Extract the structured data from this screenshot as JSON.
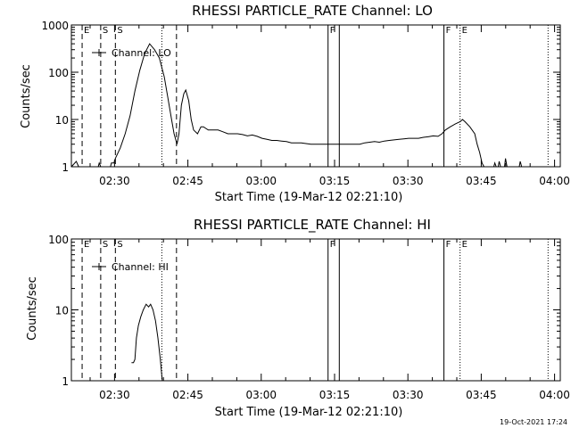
{
  "footer": {
    "timestamp": "19-Oct-2021 17:24"
  },
  "chart_data": [
    {
      "type": "line",
      "title": "RHESSI PARTICLE_RATE Channel: LO",
      "xlabel": "Start Time (19-Mar-12 02:21:10)",
      "ylabel": "Counts/sec",
      "x_unit": "minutes after 02:21:10",
      "xlim": [
        0,
        100
      ],
      "ylim": [
        1,
        1000
      ],
      "yscale": "log",
      "xticks": [
        {
          "x": 8.83,
          "label": "02:30"
        },
        {
          "x": 23.83,
          "label": "02:45"
        },
        {
          "x": 38.83,
          "label": "03:00"
        },
        {
          "x": 53.83,
          "label": "03:15"
        },
        {
          "x": 68.83,
          "label": "03:30"
        },
        {
          "x": 83.83,
          "label": "03:45"
        },
        {
          "x": 98.83,
          "label": "04:00"
        }
      ],
      "yticks": [
        {
          "y": 1,
          "label": "1"
        },
        {
          "y": 10,
          "label": "10"
        },
        {
          "y": 100,
          "label": "100"
        },
        {
          "y": 1000,
          "label": "1000"
        }
      ],
      "legend": {
        "position": "top-left",
        "entries": [
          "Channel: LO"
        ]
      },
      "vertical_markers": [
        {
          "x": 2.2,
          "style": "dashed",
          "label": "E"
        },
        {
          "x": 6.0,
          "style": "dashed",
          "label": "S"
        },
        {
          "x": 9.0,
          "style": "dashed",
          "label": "S"
        },
        {
          "x": 18.5,
          "style": "dotted",
          "label": ""
        },
        {
          "x": 21.5,
          "style": "dashed",
          "label": ""
        },
        {
          "x": 52.5,
          "style": "solid",
          "label": "F"
        },
        {
          "x": 54.8,
          "style": "solid",
          "label": ""
        },
        {
          "x": 76.2,
          "style": "solid",
          "label": "F"
        },
        {
          "x": 79.5,
          "style": "dotted",
          "label": "E"
        },
        {
          "x": 97.5,
          "style": "dotted",
          "label": ""
        }
      ],
      "series": [
        {
          "name": "Channel: LO",
          "segments": [
            [
              [
                0,
                1
              ],
              [
                1,
                1.3
              ],
              [
                1.5,
                1
              ]
            ],
            [
              [
                5.5,
                1
              ],
              [
                5.7,
                1.2
              ],
              [
                6,
                1
              ]
            ],
            [
              [
                7.3,
                1
              ],
              [
                8,
                1
              ],
              [
                8.2,
                1.2
              ],
              [
                8.7,
                1.2
              ],
              [
                9,
                1.5
              ],
              [
                10,
                2.5
              ],
              [
                11,
                5
              ],
              [
                12,
                12
              ],
              [
                13,
                40
              ],
              [
                14,
                110
              ],
              [
                15,
                250
              ],
              [
                16,
                400
              ],
              [
                17,
                300
              ],
              [
                18,
                200
              ],
              [
                19,
                80
              ],
              [
                19.7,
                30
              ],
              [
                20.5,
                10
              ],
              [
                21,
                5
              ],
              [
                21.6,
                3
              ],
              [
                22,
                5
              ],
              [
                22.5,
                20
              ],
              [
                23,
                35
              ],
              [
                23.4,
                42
              ],
              [
                24,
                25
              ],
              [
                24.5,
                10
              ],
              [
                25,
                6
              ],
              [
                25.8,
                5
              ],
              [
                26.5,
                7
              ],
              [
                27,
                7
              ],
              [
                28,
                6
              ],
              [
                29,
                6
              ],
              [
                30,
                6
              ],
              [
                31,
                5.5
              ],
              [
                32,
                5
              ],
              [
                33,
                5
              ],
              [
                34,
                5
              ],
              [
                35,
                4.8
              ],
              [
                36,
                4.5
              ],
              [
                37,
                4.7
              ],
              [
                38,
                4.4
              ],
              [
                39,
                4
              ],
              [
                40,
                3.8
              ],
              [
                41,
                3.6
              ],
              [
                42,
                3.6
              ],
              [
                43,
                3.5
              ],
              [
                44,
                3.4
              ],
              [
                45,
                3.2
              ],
              [
                46,
                3.2
              ],
              [
                47,
                3.2
              ],
              [
                48,
                3.1
              ],
              [
                49,
                3
              ],
              [
                50,
                3
              ],
              [
                51,
                3
              ],
              [
                52,
                3
              ],
              [
                53,
                3
              ],
              [
                54,
                3
              ],
              [
                55,
                3
              ],
              [
                56,
                3
              ],
              [
                57,
                3
              ],
              [
                58,
                3
              ],
              [
                59,
                3
              ],
              [
                60,
                3.2
              ],
              [
                61,
                3.3
              ],
              [
                62,
                3.4
              ],
              [
                63,
                3.3
              ],
              [
                64,
                3.5
              ],
              [
                65,
                3.6
              ],
              [
                66,
                3.7
              ],
              [
                67,
                3.8
              ],
              [
                68,
                3.9
              ],
              [
                69,
                4
              ],
              [
                70,
                4
              ],
              [
                71,
                4
              ],
              [
                72,
                4.2
              ],
              [
                73,
                4.3
              ],
              [
                74,
                4.5
              ],
              [
                75,
                4.4
              ],
              [
                75.8,
                5
              ],
              [
                76.5,
                6
              ],
              [
                77.5,
                7
              ],
              [
                78.5,
                8
              ],
              [
                79.5,
                9
              ],
              [
                80,
                10
              ],
              [
                80.5,
                9
              ],
              [
                81.5,
                7
              ],
              [
                82.5,
                5
              ],
              [
                83,
                3
              ],
              [
                83.5,
                2
              ],
              [
                84,
                1.2
              ],
              [
                84.4,
                1
              ]
            ],
            [
              [
                86.4,
                1
              ],
              [
                86.6,
                1.2
              ],
              [
                86.9,
                1
              ]
            ],
            [
              [
                87.3,
                1
              ],
              [
                87.5,
                1.3
              ],
              [
                87.8,
                1
              ]
            ],
            [
              [
                88.6,
                1
              ],
              [
                88.8,
                1.5
              ],
              [
                89.1,
                1
              ]
            ],
            [
              [
                91.6,
                1
              ],
              [
                91.8,
                1.3
              ],
              [
                92.1,
                1
              ]
            ]
          ]
        }
      ]
    },
    {
      "type": "line",
      "title": "RHESSI PARTICLE_RATE Channel: HI",
      "xlabel": "Start Time (19-Mar-12 02:21:10)",
      "ylabel": "Counts/sec",
      "x_unit": "minutes after 02:21:10",
      "xlim": [
        0,
        100
      ],
      "ylim": [
        1,
        100
      ],
      "yscale": "log",
      "xticks": [
        {
          "x": 8.83,
          "label": "02:30"
        },
        {
          "x": 23.83,
          "label": "02:45"
        },
        {
          "x": 38.83,
          "label": "03:00"
        },
        {
          "x": 53.83,
          "label": "03:15"
        },
        {
          "x": 68.83,
          "label": "03:30"
        },
        {
          "x": 83.83,
          "label": "03:45"
        },
        {
          "x": 98.83,
          "label": "04:00"
        }
      ],
      "yticks": [
        {
          "y": 1,
          "label": "1"
        },
        {
          "y": 10,
          "label": "10"
        },
        {
          "y": 100,
          "label": "100"
        }
      ],
      "legend": {
        "position": "top-left",
        "entries": [
          "Channel: HI"
        ]
      },
      "vertical_markers": [
        {
          "x": 2.2,
          "style": "dashed",
          "label": "E"
        },
        {
          "x": 6.0,
          "style": "dashed",
          "label": "S"
        },
        {
          "x": 9.0,
          "style": "dashed",
          "label": "S"
        },
        {
          "x": 18.5,
          "style": "dotted",
          "label": ""
        },
        {
          "x": 21.5,
          "style": "dashed",
          "label": ""
        },
        {
          "x": 52.5,
          "style": "solid",
          "label": "F"
        },
        {
          "x": 54.8,
          "style": "solid",
          "label": ""
        },
        {
          "x": 76.2,
          "style": "solid",
          "label": "F"
        },
        {
          "x": 79.5,
          "style": "dotted",
          "label": "E"
        },
        {
          "x": 97.5,
          "style": "dotted",
          "label": ""
        }
      ],
      "series": [
        {
          "name": "Channel: HI",
          "segments": [
            [
              [
                12.3,
                1.8
              ],
              [
                12.7,
                1.8
              ],
              [
                13,
                2
              ],
              [
                13.3,
                4
              ],
              [
                13.7,
                6
              ],
              [
                14.2,
                8
              ],
              [
                14.7,
                10
              ],
              [
                15.3,
                12
              ],
              [
                15.8,
                11
              ],
              [
                16.2,
                12
              ],
              [
                16.7,
                10
              ],
              [
                17.2,
                7
              ],
              [
                17.7,
                4
              ],
              [
                18.2,
                2
              ],
              [
                18.6,
                1
              ]
            ]
          ]
        }
      ]
    }
  ]
}
